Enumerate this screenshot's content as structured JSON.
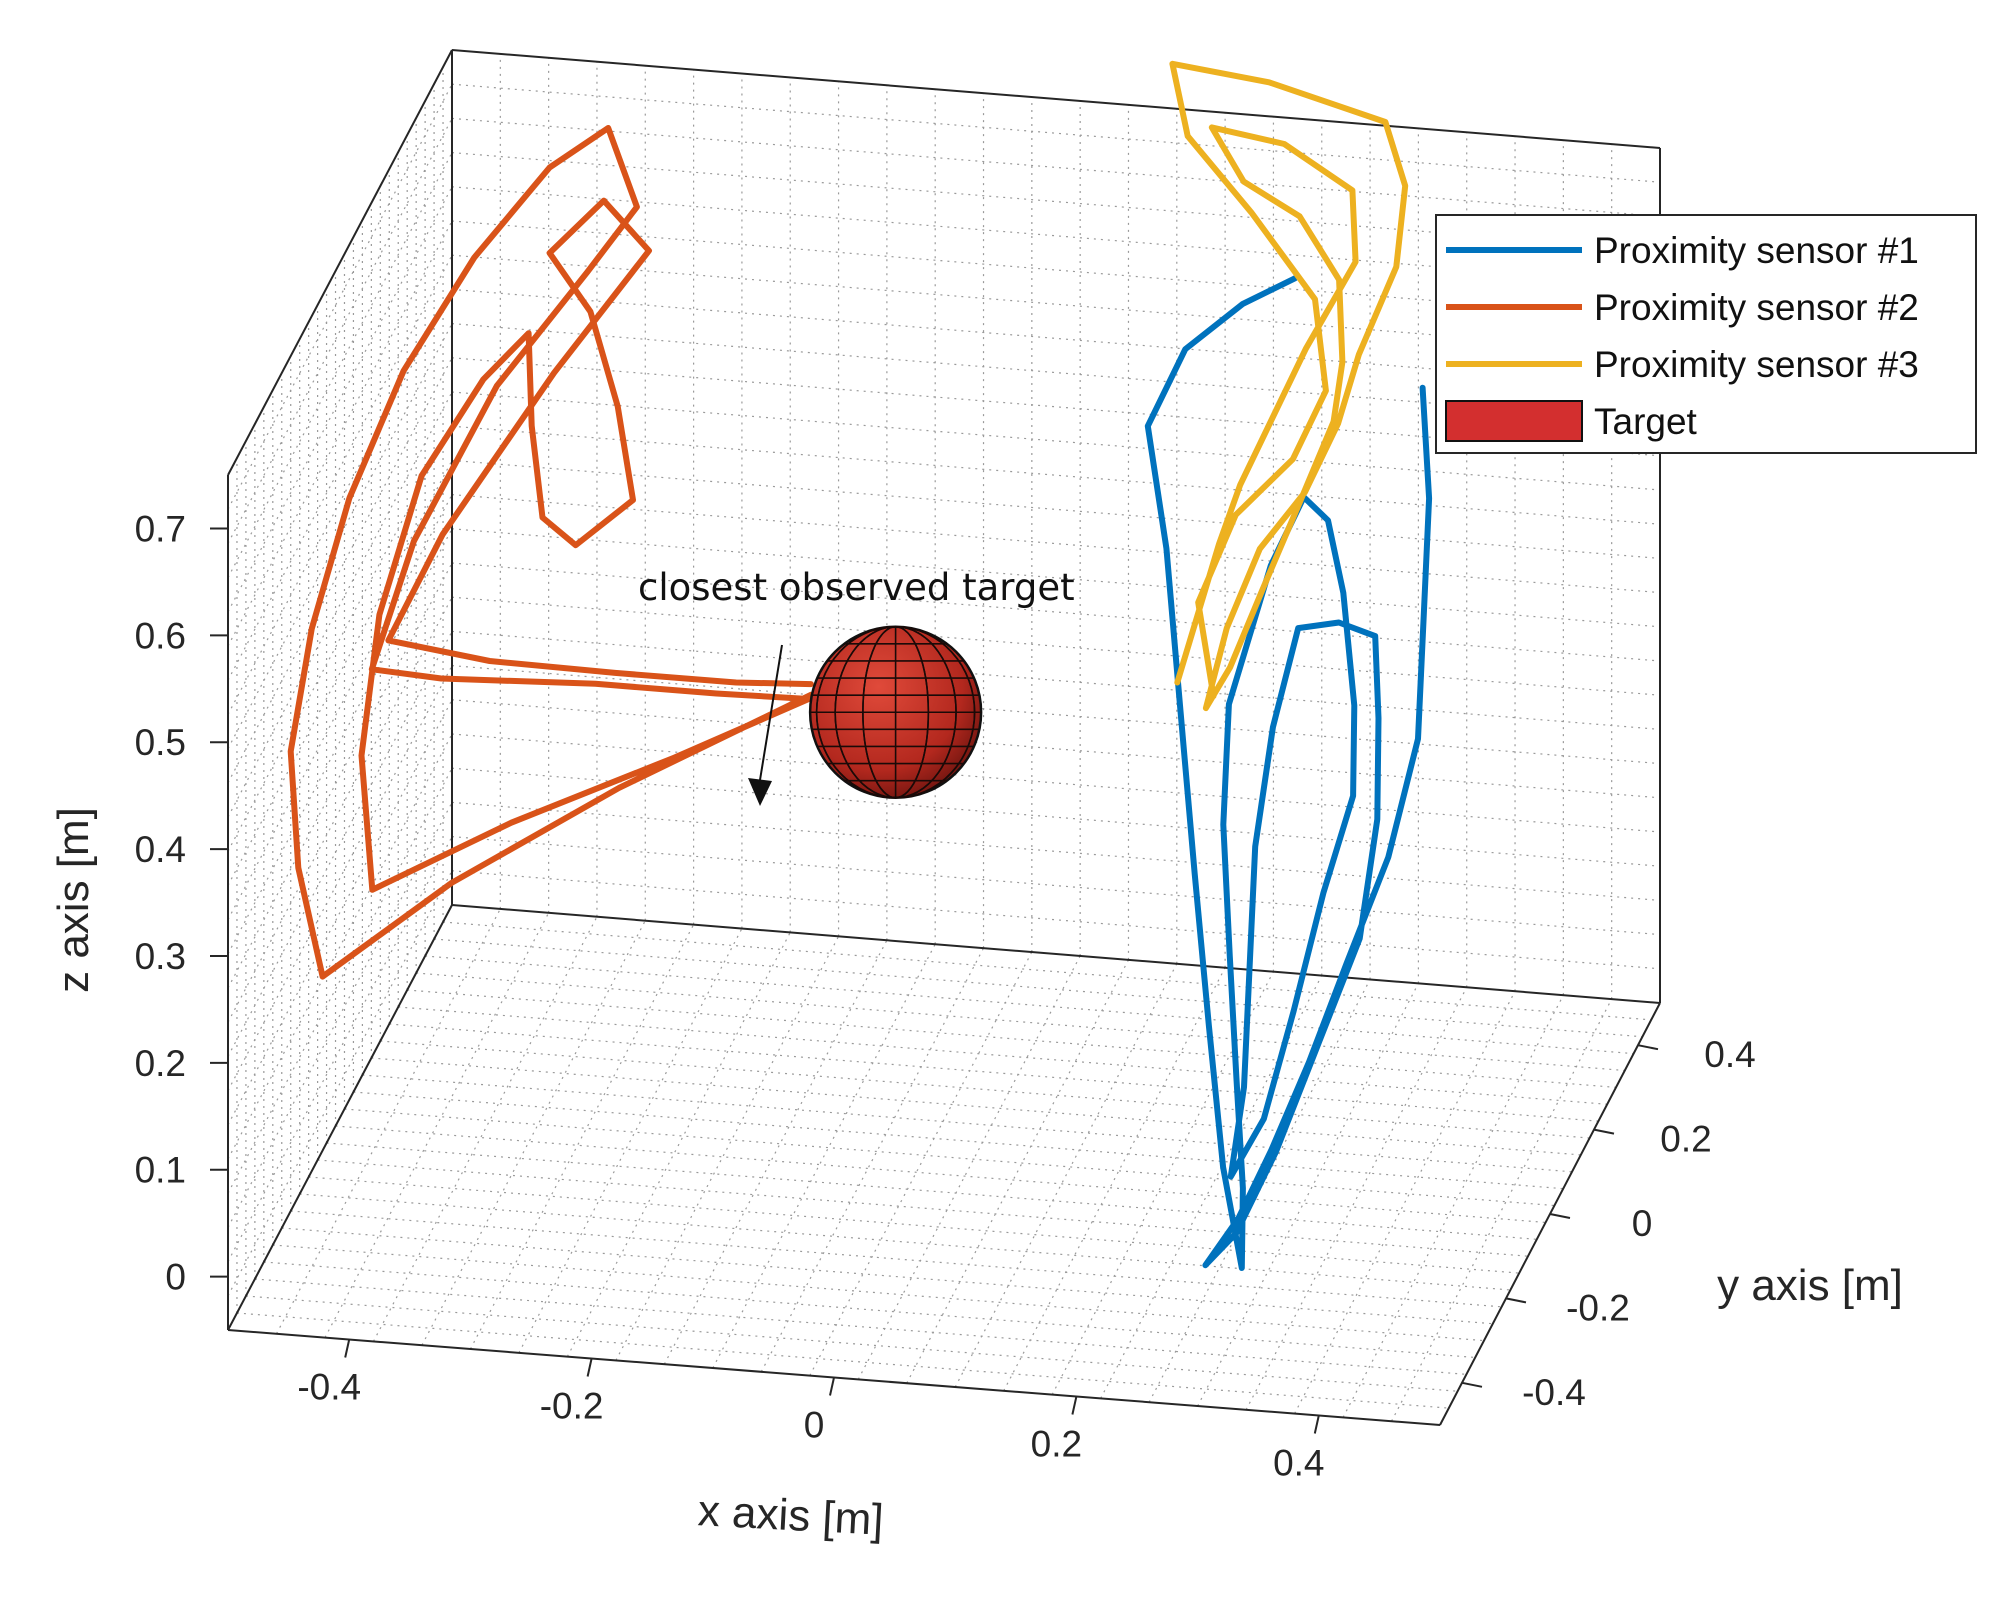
{
  "chart_data": {
    "type": "line",
    "title": "",
    "xlabel": "x axis [m]",
    "ylabel": "y axis [m]",
    "zlabel": "z axis [m]",
    "xlim": [
      -0.5,
      0.5
    ],
    "ylim": [
      -0.5,
      0.5
    ],
    "zlim": [
      -0.05,
      0.75
    ],
    "x_ticks": [
      "-0.4",
      "-0.2",
      "0",
      "0.2",
      "0.4"
    ],
    "y_ticks": [
      "-0.4",
      "-0.2",
      "0",
      "0.2",
      "0.4"
    ],
    "z_ticks": [
      "0",
      "0.1",
      "0.2",
      "0.3",
      "0.4",
      "0.5",
      "0.6",
      "0.7"
    ],
    "grid": true,
    "legend_position": "top-right",
    "legend": [
      {
        "label": "Proximity sensor #1",
        "color": "#0072BD",
        "kind": "line"
      },
      {
        "label": "Proximity sensor #2",
        "color": "#D95319",
        "kind": "line"
      },
      {
        "label": "Proximity sensor #3",
        "color": "#EDB120",
        "kind": "line"
      },
      {
        "label": "Target",
        "color": "#D32F2F",
        "kind": "patch"
      }
    ],
    "annotation": {
      "text": "closest observed target"
    },
    "target": {
      "center": [
        -0.05,
        0.05,
        0.35
      ],
      "radius": 0.08
    },
    "series": [
      {
        "name": "Proximity sensor #1",
        "color": "#0072BD",
        "points": [
          [
            0.34,
            0.3,
            0.59
          ],
          [
            0.36,
            0.22,
            0.52
          ],
          [
            0.37,
            0.14,
            0.44
          ],
          [
            0.38,
            0.06,
            0.36
          ],
          [
            0.37,
            -0.02,
            0.28
          ],
          [
            0.35,
            -0.1,
            0.21
          ],
          [
            0.33,
            -0.16,
            0.14
          ],
          [
            0.31,
            -0.22,
            0.08
          ],
          [
            0.29,
            -0.26,
            0.03
          ],
          [
            0.27,
            -0.3,
            0.0
          ],
          [
            0.29,
            -0.27,
            0.02
          ],
          [
            0.31,
            -0.2,
            0.07
          ],
          [
            0.33,
            -0.12,
            0.14
          ],
          [
            0.35,
            -0.04,
            0.21
          ],
          [
            0.35,
            0.04,
            0.29
          ],
          [
            0.34,
            0.1,
            0.36
          ],
          [
            0.33,
            0.14,
            0.42
          ],
          [
            0.3,
            0.14,
            0.43
          ],
          [
            0.27,
            0.12,
            0.43
          ],
          [
            0.26,
            0.06,
            0.36
          ],
          [
            0.26,
            -0.02,
            0.28
          ],
          [
            0.27,
            -0.1,
            0.2
          ],
          [
            0.28,
            -0.18,
            0.12
          ],
          [
            0.28,
            -0.24,
            0.06
          ],
          [
            0.3,
            -0.2,
            0.1
          ],
          [
            0.31,
            -0.12,
            0.17
          ],
          [
            0.32,
            -0.04,
            0.25
          ],
          [
            0.33,
            0.04,
            0.31
          ],
          [
            0.32,
            0.1,
            0.37
          ],
          [
            0.3,
            0.16,
            0.45
          ],
          [
            0.28,
            0.2,
            0.5
          ],
          [
            0.26,
            0.2,
            0.52
          ],
          [
            0.24,
            0.16,
            0.47
          ],
          [
            0.22,
            0.08,
            0.37
          ],
          [
            0.23,
            0.0,
            0.29
          ],
          [
            0.25,
            -0.08,
            0.2
          ],
          [
            0.27,
            -0.16,
            0.12
          ],
          [
            0.29,
            -0.24,
            0.05
          ],
          [
            0.3,
            -0.3,
            0.0
          ],
          [
            0.27,
            -0.22,
            0.06
          ],
          [
            0.24,
            -0.12,
            0.15
          ],
          [
            0.21,
            -0.02,
            0.25
          ],
          [
            0.18,
            0.08,
            0.36
          ],
          [
            0.15,
            0.18,
            0.47
          ],
          [
            0.12,
            0.26,
            0.55
          ],
          [
            0.14,
            0.32,
            0.6
          ],
          [
            0.18,
            0.36,
            0.63
          ],
          [
            0.22,
            0.38,
            0.65
          ]
        ]
      },
      {
        "name": "Proximity sensor #2",
        "color": "#D95319",
        "points": [
          [
            -0.12,
            0.05,
            0.36
          ],
          [
            -0.26,
            -0.05,
            0.3
          ],
          [
            -0.38,
            -0.15,
            0.24
          ],
          [
            -0.47,
            -0.24,
            0.18
          ],
          [
            -0.49,
            -0.24,
            0.28
          ],
          [
            -0.5,
            -0.22,
            0.38
          ],
          [
            -0.49,
            -0.18,
            0.48
          ],
          [
            -0.47,
            -0.12,
            0.58
          ],
          [
            -0.44,
            -0.04,
            0.67
          ],
          [
            -0.4,
            0.06,
            0.74
          ],
          [
            -0.36,
            0.18,
            0.78
          ],
          [
            -0.33,
            0.28,
            0.78
          ],
          [
            -0.31,
            0.3,
            0.7
          ],
          [
            -0.34,
            0.24,
            0.66
          ],
          [
            -0.4,
            0.16,
            0.58
          ],
          [
            -0.45,
            0.06,
            0.47
          ],
          [
            -0.47,
            -0.02,
            0.38
          ],
          [
            -0.42,
            0.02,
            0.36
          ],
          [
            -0.3,
            0.06,
            0.35
          ],
          [
            -0.2,
            0.06,
            0.35
          ],
          [
            -0.12,
            0.04,
            0.36
          ],
          [
            -0.22,
            -0.02,
            0.32
          ],
          [
            -0.34,
            -0.1,
            0.28
          ],
          [
            -0.44,
            -0.18,
            0.24
          ],
          [
            -0.46,
            -0.12,
            0.34
          ],
          [
            -0.46,
            -0.04,
            0.44
          ],
          [
            -0.44,
            0.04,
            0.54
          ],
          [
            -0.4,
            0.1,
            0.61
          ],
          [
            -0.37,
            0.14,
            0.64
          ],
          [
            -0.36,
            0.1,
            0.57
          ],
          [
            -0.34,
            0.04,
            0.51
          ],
          [
            -0.32,
            0.08,
            0.47
          ],
          [
            -0.28,
            0.12,
            0.5
          ],
          [
            -0.3,
            0.16,
            0.57
          ],
          [
            -0.33,
            0.2,
            0.64
          ],
          [
            -0.36,
            0.18,
            0.7
          ],
          [
            -0.33,
            0.26,
            0.72
          ],
          [
            -0.3,
            0.3,
            0.66
          ],
          [
            -0.36,
            0.2,
            0.58
          ],
          [
            -0.43,
            0.08,
            0.47
          ],
          [
            -0.46,
            0.0,
            0.4
          ],
          [
            -0.38,
            0.02,
            0.38
          ],
          [
            -0.28,
            0.04,
            0.37
          ],
          [
            -0.18,
            0.04,
            0.37
          ],
          [
            -0.12,
            0.05,
            0.37
          ]
        ]
      },
      {
        "name": "Proximity sensor #3",
        "color": "#EDB120",
        "points": [
          [
            0.2,
            0.12,
            0.36
          ],
          [
            0.18,
            0.16,
            0.43
          ],
          [
            0.2,
            0.22,
            0.49
          ],
          [
            0.24,
            0.26,
            0.53
          ],
          [
            0.26,
            0.3,
            0.58
          ],
          [
            0.24,
            0.36,
            0.64
          ],
          [
            0.18,
            0.4,
            0.7
          ],
          [
            0.12,
            0.44,
            0.75
          ],
          [
            0.1,
            0.48,
            0.8
          ],
          [
            0.18,
            0.48,
            0.79
          ],
          [
            0.28,
            0.46,
            0.77
          ],
          [
            0.3,
            0.44,
            0.72
          ],
          [
            0.3,
            0.4,
            0.66
          ],
          [
            0.28,
            0.34,
            0.6
          ],
          [
            0.27,
            0.3,
            0.55
          ],
          [
            0.25,
            0.26,
            0.5
          ],
          [
            0.22,
            0.22,
            0.46
          ],
          [
            0.2,
            0.18,
            0.4
          ],
          [
            0.19,
            0.14,
            0.34
          ],
          [
            0.21,
            0.14,
            0.38
          ],
          [
            0.23,
            0.18,
            0.44
          ],
          [
            0.25,
            0.24,
            0.5
          ],
          [
            0.27,
            0.28,
            0.56
          ],
          [
            0.27,
            0.32,
            0.6
          ],
          [
            0.26,
            0.36,
            0.66
          ],
          [
            0.22,
            0.4,
            0.7
          ],
          [
            0.17,
            0.42,
            0.72
          ],
          [
            0.14,
            0.44,
            0.76
          ],
          [
            0.2,
            0.44,
            0.75
          ],
          [
            0.26,
            0.42,
            0.72
          ],
          [
            0.27,
            0.38,
            0.67
          ],
          [
            0.24,
            0.32,
            0.61
          ],
          [
            0.22,
            0.28,
            0.56
          ],
          [
            0.2,
            0.24,
            0.51
          ],
          [
            0.19,
            0.2,
            0.47
          ],
          [
            0.18,
            0.16,
            0.42
          ],
          [
            0.17,
            0.12,
            0.37
          ]
        ]
      }
    ]
  }
}
